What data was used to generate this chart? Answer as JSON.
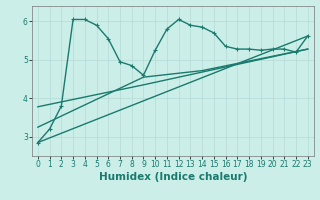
{
  "title": "",
  "xlabel": "Humidex (Indice chaleur)",
  "background_color": "#cceee8",
  "line_color": "#1a7a6e",
  "xlim": [
    -0.5,
    23.5
  ],
  "ylim": [
    2.5,
    6.4
  ],
  "yticks": [
    3,
    4,
    5,
    6
  ],
  "xticks": [
    0,
    1,
    2,
    3,
    4,
    5,
    6,
    7,
    8,
    9,
    10,
    11,
    12,
    13,
    14,
    15,
    16,
    17,
    18,
    19,
    20,
    21,
    22,
    23
  ],
  "series1_x": [
    0,
    1,
    2,
    3,
    4,
    5,
    6,
    7,
    8,
    9,
    10,
    11,
    12,
    13,
    14,
    15,
    16,
    17,
    18,
    19,
    20,
    21,
    22,
    23
  ],
  "series1_y": [
    2.85,
    3.2,
    3.8,
    6.05,
    6.05,
    5.9,
    5.55,
    4.95,
    4.85,
    4.6,
    5.25,
    5.8,
    6.05,
    5.9,
    5.85,
    5.7,
    5.35,
    5.28,
    5.28,
    5.25,
    5.28,
    5.28,
    5.2,
    5.62
  ],
  "series2_x": [
    0,
    23
  ],
  "series2_y": [
    2.85,
    5.62
  ],
  "series3_x": [
    0,
    9,
    23
  ],
  "series3_y": [
    3.78,
    4.35,
    5.28
  ],
  "series4_x": [
    0,
    9,
    14,
    23
  ],
  "series4_y": [
    3.25,
    4.55,
    4.72,
    5.28
  ],
  "marker_size": 2.5,
  "line_width": 1.0,
  "grid_color": "#b8ddd8",
  "tick_fontsize": 5.5,
  "xlabel_fontsize": 7.5
}
